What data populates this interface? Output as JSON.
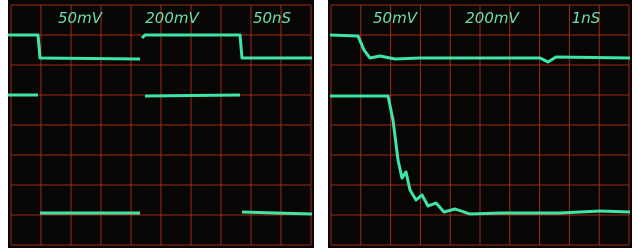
{
  "panels": [
    {
      "labels": [
        "50mV",
        "200mV",
        "50nS"
      ]
    },
    {
      "labels": [
        "50mV",
        "200mV",
        "1nS"
      ]
    }
  ]
}
